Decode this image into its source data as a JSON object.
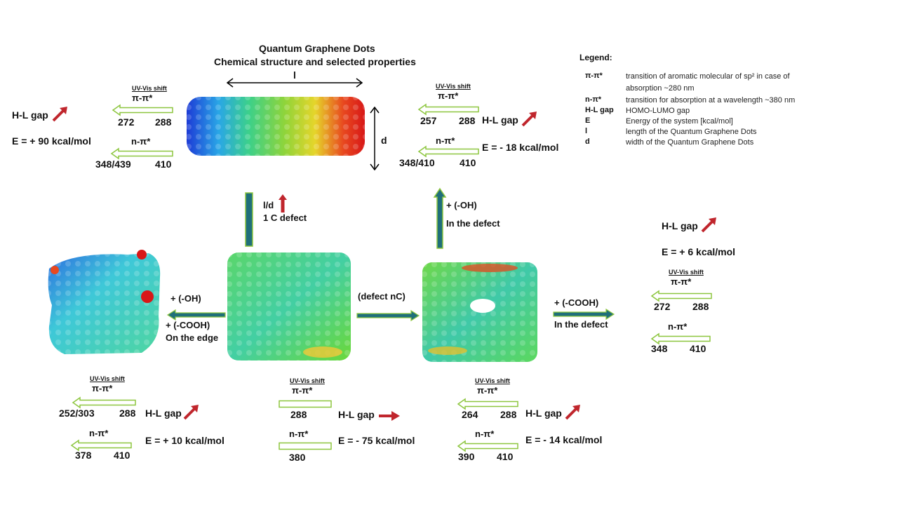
{
  "title": {
    "line1": "Quantum Graphene Dots",
    "line2": "Chemical structure and selected properties"
  },
  "colors": {
    "arrow_outline": "#8dc63f",
    "arrow_flow": "#1f6f7a",
    "gap_arrow": "#c0262d"
  },
  "icons": [
    "open-arrow-icon",
    "flow-arrow-icon",
    "trend-up-icon",
    "trend-flat-icon",
    "double-arrow-icon"
  ],
  "legend": {
    "title": "Legend:",
    "items": [
      {
        "sym": "π-π*",
        "desc": "transition of aromatic molecular of sp² in case of"
      },
      {
        "sym": "",
        "desc": "absorption ~280 nm"
      },
      {
        "sym": "n-π*",
        "desc": "transition for absorption at a wavelength ~380 nm"
      },
      {
        "sym": "H-L gap",
        "desc": "HOMO-LUMO gap"
      },
      {
        "sym": "E",
        "desc": "Energy of the system [kcal/mol]"
      },
      {
        "sym": "l",
        "desc": "length of the Quantum Graphene Dots"
      },
      {
        "sym": "d",
        "desc": "width of the Quantum Graphene Dots"
      }
    ]
  },
  "dims": {
    "l": "l",
    "d": "d"
  },
  "common": {
    "uv_shift": "UV-Vis shift",
    "pp": "π-π*",
    "np": "n-π*",
    "hl_gap": "H-L gap"
  },
  "top_left": {
    "pp_from": "272",
    "pp_to": "288",
    "np_from": "348/439",
    "np_to": "410",
    "energy": "E = + 90 kcal/mol"
  },
  "top_right": {
    "pp_from": "257",
    "pp_to": "288",
    "np_from": "348/410",
    "np_to": "410",
    "energy": "E = - 18 kcal/mol"
  },
  "far_right": {
    "pp_from": "272",
    "pp_to": "288",
    "np_from": "348",
    "np_to": "410",
    "energy": "E = + 6 kcal/mol"
  },
  "bottom_left": {
    "pp_from": "252/303",
    "pp_to": "288",
    "np_from": "378",
    "np_to": "410",
    "energy": "E = + 10 kcal/mol"
  },
  "bottom_center": {
    "pp_val": "288",
    "np_val": "380",
    "energy": "E = - 75 kcal/mol"
  },
  "bottom_right": {
    "pp_from": "264",
    "pp_to": "288",
    "np_from": "390",
    "np_to": "410",
    "energy": "E = - 14 kcal/mol"
  },
  "steps": {
    "up_label1": "l/d",
    "up_label2": "1 C defect",
    "oh_defect1": "+ (-OH)",
    "oh_defect2": "In the defect",
    "left1": "+ (-OH)",
    "left2": "+ (-COOH)",
    "left3": "On the edge",
    "center": "(defect nC)",
    "right1": "+ (-COOH)",
    "right2": "In the defect"
  }
}
